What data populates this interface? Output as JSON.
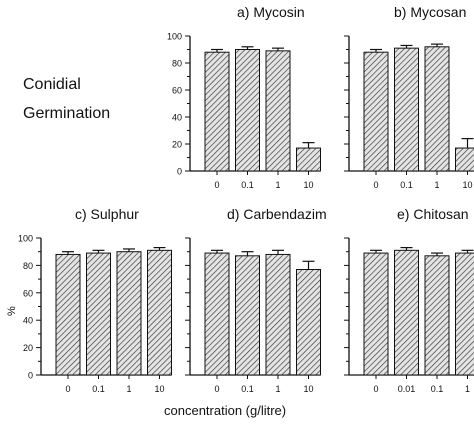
{
  "figure": {
    "side_label_line1": "Conidial",
    "side_label_line2": "Germination",
    "y_unit_label": "%",
    "x_axis_label": "concentration (g/litre)"
  },
  "chart_data": [
    {
      "type": "bar",
      "title": "a) Mycosin",
      "categories": [
        "0",
        "0.1",
        "1",
        "10"
      ],
      "values": [
        88,
        90,
        89,
        17
      ],
      "errors": [
        2,
        2,
        2,
        4
      ],
      "ylim": [
        0,
        100
      ],
      "yticks": [
        "0",
        "20",
        "40",
        "60",
        "80",
        "100"
      ],
      "show_ytick_labels": true
    },
    {
      "type": "bar",
      "title": "b) Mycosan",
      "categories": [
        "0",
        "0.1",
        "1",
        "10"
      ],
      "values": [
        88,
        91,
        92,
        17
      ],
      "errors": [
        2,
        2,
        2,
        7
      ],
      "ylim": [
        0,
        100
      ],
      "yticks": [],
      "show_ytick_labels": false
    },
    {
      "type": "bar",
      "title": "c) Sulphur",
      "categories": [
        "0",
        "0.1",
        "1",
        "10"
      ],
      "values": [
        88,
        89,
        90,
        91
      ],
      "errors": [
        2,
        2,
        2,
        2
      ],
      "ylim": [
        0,
        100
      ],
      "yticks": [
        "0",
        "20",
        "40",
        "60",
        "80",
        "100"
      ],
      "show_ytick_labels": true
    },
    {
      "type": "bar",
      "title": "d) Carbendazim",
      "categories": [
        "0",
        "0.1",
        "1",
        "10"
      ],
      "values": [
        89,
        87,
        88,
        77
      ],
      "errors": [
        2,
        3,
        3,
        6
      ],
      "ylim": [
        0,
        100
      ],
      "yticks": [],
      "show_ytick_labels": false
    },
    {
      "type": "bar",
      "title": "e) Chitosan",
      "categories": [
        "0",
        "0.01",
        "0.1",
        "1"
      ],
      "values": [
        89,
        91,
        87,
        89
      ],
      "errors": [
        2,
        2,
        2,
        2
      ],
      "ylim": [
        0,
        100
      ],
      "yticks": [],
      "show_ytick_labels": false
    }
  ]
}
